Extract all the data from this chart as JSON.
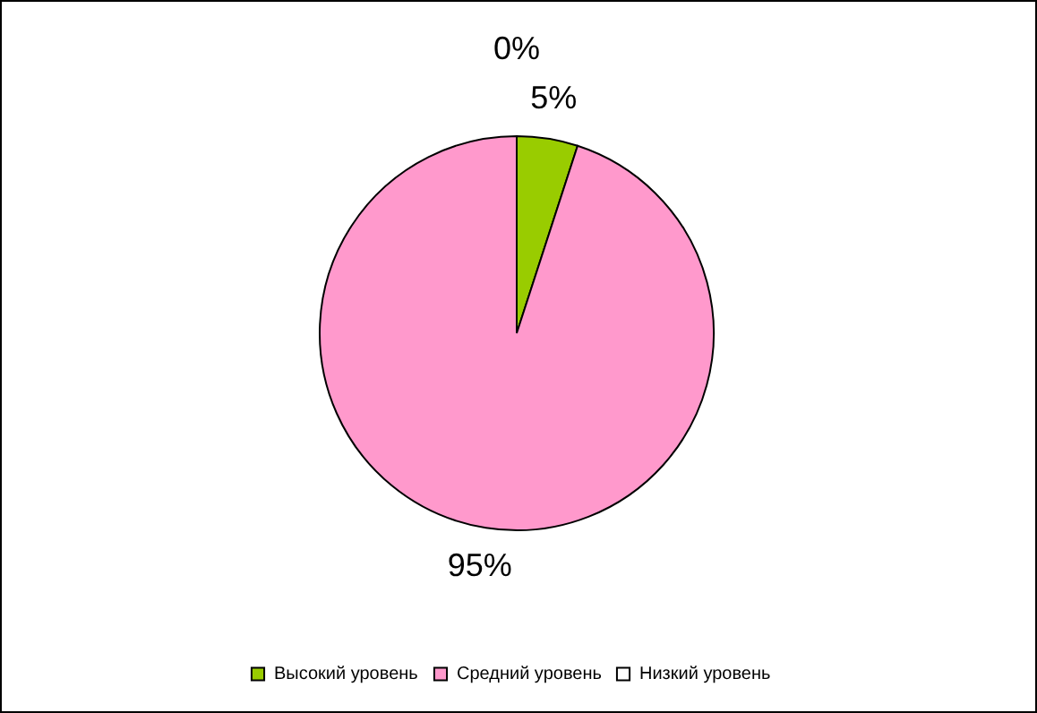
{
  "chart_data": {
    "type": "pie",
    "categories": [
      "Высокий уровень",
      "Средний уровень",
      "Низкий уровень"
    ],
    "values": [
      5,
      95,
      0
    ],
    "value_labels": [
      "5%",
      "95%",
      "0%"
    ],
    "colors": [
      "#99cc00",
      "#ff99cc",
      "#ffffff"
    ],
    "legend": "bottom"
  }
}
